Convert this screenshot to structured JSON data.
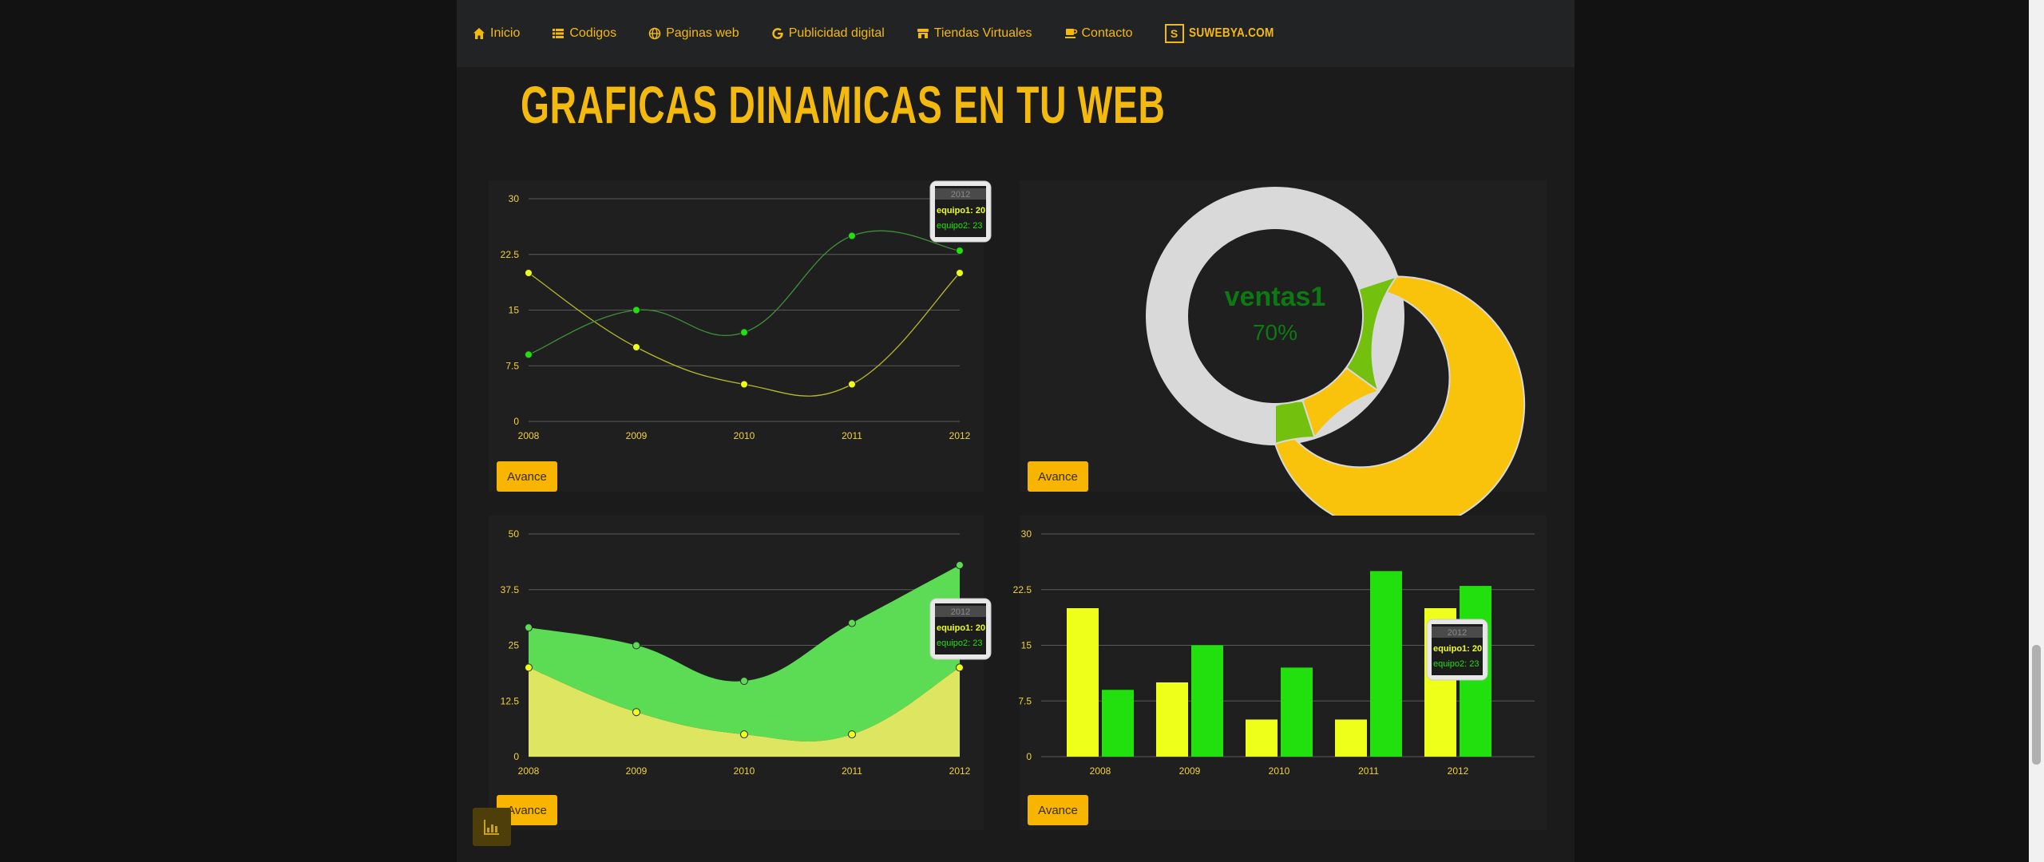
{
  "nav": {
    "items": [
      {
        "label": "Inicio",
        "icon": "home-icon"
      },
      {
        "label": "Codigos",
        "icon": "list-icon"
      },
      {
        "label": "Paginas web",
        "icon": "globe-icon"
      },
      {
        "label": "Publicidad digital",
        "icon": "google-icon"
      },
      {
        "label": "Tiendas Virtuales",
        "icon": "store-icon"
      },
      {
        "label": "Contacto",
        "icon": "coffee-icon"
      }
    ],
    "brand_letter": "S",
    "brand": "SUWEBYA.COM"
  },
  "title": "GRAFICAS DINAMICAS EN TU WEB",
  "buttons": {
    "avance": "Avance"
  },
  "colors": {
    "accent": "#f3b90f",
    "equipo1": "#eeff1a",
    "equipo2": "#22e00e",
    "equipo1_area": "#dde561",
    "equipo2_area": "#5cdc54",
    "donut_main": "#f8c30a",
    "donut_secondary": "#74c00e"
  },
  "chart_data": [
    {
      "type": "line",
      "categories": [
        "2008",
        "2009",
        "2010",
        "2011",
        "2012"
      ],
      "series": [
        {
          "name": "equipo1",
          "values": [
            20,
            10,
            5,
            5,
            20
          ]
        },
        {
          "name": "equipo2",
          "values": [
            9,
            15,
            12,
            25,
            23
          ]
        }
      ],
      "ylim": [
        0,
        30
      ],
      "yticks": [
        "0",
        "7.5",
        "15",
        "22.5",
        "30"
      ],
      "tooltip": {
        "title": "2012",
        "lines": [
          "equipo1: 20",
          "equipo2: 23"
        ]
      },
      "grid": true
    },
    {
      "type": "pie",
      "style": "donut",
      "center_label": "ventas1",
      "center_value": "70%",
      "slices": [
        {
          "value": 70,
          "color": "#f8c30a"
        },
        {
          "value": 15,
          "color": "#74c00e"
        },
        {
          "value": 10,
          "color": "#f8c30a"
        },
        {
          "value": 5,
          "color": "#74c00e"
        }
      ]
    },
    {
      "type": "area",
      "stacked": true,
      "categories": [
        "2008",
        "2009",
        "2010",
        "2011",
        "2012"
      ],
      "series": [
        {
          "name": "equipo1",
          "values": [
            20,
            10,
            5,
            5,
            20
          ]
        },
        {
          "name": "equipo2",
          "values": [
            9,
            15,
            12,
            25,
            23
          ]
        }
      ],
      "ylim": [
        0,
        50
      ],
      "yticks": [
        "0",
        "12.5",
        "25",
        "37.5",
        "50"
      ],
      "tooltip": {
        "title": "2012",
        "lines": [
          "equipo1: 20",
          "equipo2: 23"
        ]
      },
      "grid": true
    },
    {
      "type": "bar",
      "categories": [
        "2008",
        "2009",
        "2010",
        "2011",
        "2012"
      ],
      "series": [
        {
          "name": "equipo1",
          "values": [
            20,
            10,
            5,
            5,
            20
          ]
        },
        {
          "name": "equipo2",
          "values": [
            9,
            15,
            12,
            25,
            23
          ]
        }
      ],
      "ylim": [
        0,
        30
      ],
      "yticks": [
        "0",
        "7.5",
        "15",
        "22.5",
        "30"
      ],
      "tooltip": {
        "title": "2012",
        "lines": [
          "equipo1: 20",
          "equipo2: 23"
        ]
      },
      "grid": true
    }
  ]
}
